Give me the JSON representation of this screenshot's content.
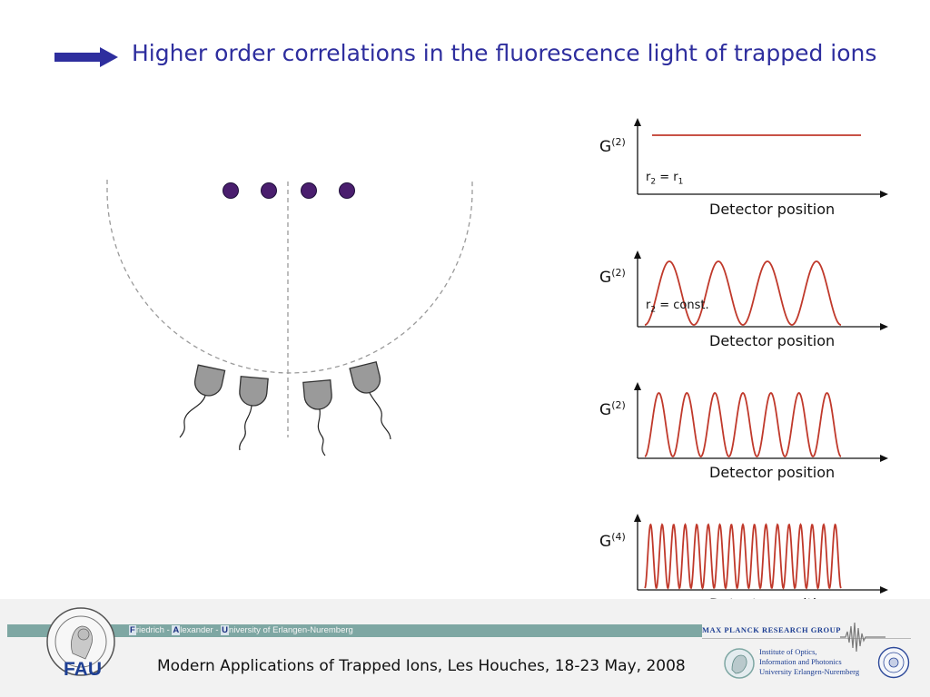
{
  "slide": {
    "title": "Higher order correlations in the fluorescence light of trapped ions"
  },
  "plots": [
    {
      "g_label": "G",
      "g_order": "(2)",
      "x_label": "Detector position",
      "annotation": {
        "r2": "r",
        "r2_sub": "2",
        "eq": " = ",
        "rhs": "r",
        "rhs_sub": "1"
      }
    },
    {
      "g_label": "G",
      "g_order": "(2)",
      "x_label": "Detector position",
      "annotation": {
        "r2": "r",
        "r2_sub": "2",
        "eq": " = const.",
        "rhs": "",
        "rhs_sub": ""
      }
    },
    {
      "g_label": "G",
      "g_order": "(2)",
      "x_label": "Detector position"
    },
    {
      "g_label": "G",
      "g_order": "(4)",
      "x_label": "Detector position"
    }
  ],
  "chart_data": [
    {
      "type": "line",
      "ylabel": "G(2)",
      "xlabel": "Detector position",
      "series": [
        {
          "shape": "constant",
          "color": "#c0392b"
        }
      ],
      "annotation": "r2 = r1"
    },
    {
      "type": "line",
      "ylabel": "G(2)",
      "xlabel": "Detector position",
      "series": [
        {
          "shape": "cosine",
          "periods": 4,
          "color": "#c0392b"
        }
      ],
      "annotation": "r2 = const."
    },
    {
      "type": "line",
      "ylabel": "G(2)",
      "xlabel": "Detector position",
      "series": [
        {
          "shape": "cosine",
          "periods": 7,
          "color": "#c0392b"
        }
      ]
    },
    {
      "type": "line",
      "ylabel": "G(4)",
      "xlabel": "Detector position",
      "series": [
        {
          "shape": "cosine",
          "periods": 17,
          "color": "#c0392b"
        }
      ]
    }
  ],
  "scene": {
    "ion_count": 4,
    "detector_count": 4,
    "ion_color": "#4a1e6e"
  },
  "footer": {
    "fau_f": "F",
    "fau_f_rest": "riedrich - ",
    "fau_a": "A",
    "fau_a_rest": "lexander - ",
    "fau_u": "U",
    "fau_u_rest": "niversity of Erlangen-Nuremberg",
    "fau_logo": "FAU",
    "conference": "Modern Applications of Trapped Ions, Les Houches, 18-23 May, 2008",
    "mpg": "MAX PLANCK RESEARCH GROUP",
    "inst_line1": "Institute of Optics,",
    "inst_line2": "Information and Photonics",
    "inst_line3": "University Erlangen-Nuremberg"
  },
  "colors": {
    "title": "#2e2e9e",
    "curve": "#c0392b",
    "accent": "#2e2e9e"
  }
}
